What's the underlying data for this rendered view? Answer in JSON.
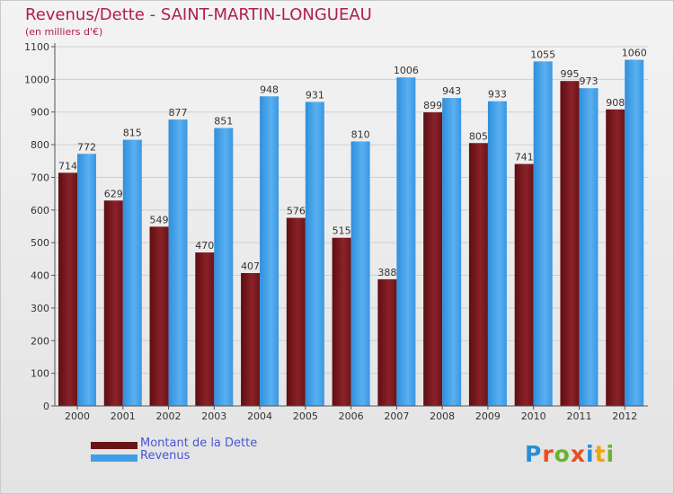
{
  "header": {
    "title": "Revenus/Dette - SAINT-MARTIN-LONGUEAU",
    "subtitle": "(en milliers d'€)"
  },
  "logo": {
    "text": "Proxiti",
    "letters": [
      "P",
      "r",
      "o",
      "x",
      "i",
      "t",
      "i"
    ],
    "colors": [
      "#2a8dd6",
      "#e94e1b",
      "#6bb32e",
      "#e94e1b",
      "#2a8dd6",
      "#f0a500",
      "#6bb32e"
    ]
  },
  "chart_data": {
    "type": "bar",
    "categories": [
      "2000",
      "2001",
      "2002",
      "2003",
      "2004",
      "2005",
      "2006",
      "2007",
      "2008",
      "2009",
      "2010",
      "2011",
      "2012"
    ],
    "series": [
      {
        "name": "Montant de la Dette",
        "color": "#7a1a1e",
        "labels": [
          "714",
          "629",
          "549",
          "470",
          "407",
          "576",
          "515",
          "388",
          "899",
          "805",
          "741",
          "995",
          "908"
        ],
        "values": [
          714,
          629,
          549,
          470,
          407,
          576,
          515,
          388,
          899,
          805,
          741,
          995,
          908
        ]
      },
      {
        "name": "Revenus",
        "color": "#3f9ee6",
        "labels": [
          "772",
          "815",
          "877",
          "851",
          "948",
          "931",
          "810",
          "1006",
          "943",
          "933",
          "1055",
          "973",
          "1060"
        ],
        "values": [
          772,
          815,
          877,
          851,
          948,
          931,
          810,
          1006,
          943,
          933,
          1055,
          973,
          1060
        ]
      }
    ],
    "ylim": [
      0,
      1100
    ],
    "yticks": [
      "0",
      "100",
      "200",
      "300",
      "400",
      "500",
      "600",
      "700",
      "800",
      "900",
      "1000",
      "1100"
    ],
    "grid": true,
    "legend_position": "bottom-left"
  }
}
